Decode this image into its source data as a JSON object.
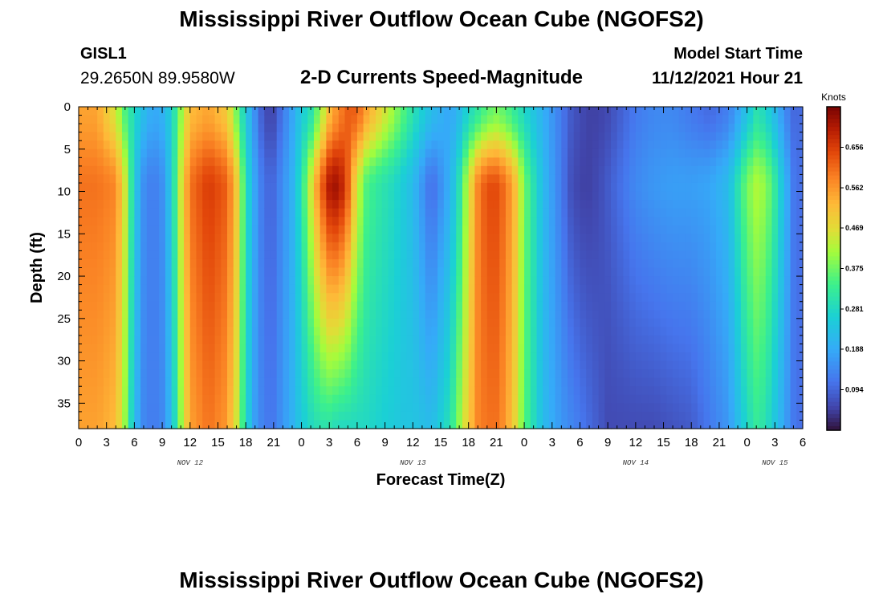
{
  "header": {
    "title": "Mississippi River Outflow Ocean Cube (NGOFS2)",
    "station_id": "GISL1",
    "station_coords": "29.2650N  89.9580W",
    "subtitle": "2-D Currents Speed-Magnitude",
    "model_start_label": "Model Start Time",
    "model_start_value": "11/12/2021 Hour 21"
  },
  "footer": {
    "title": "Mississippi River Outflow Ocean Cube (NGOFS2)"
  },
  "chart_data": {
    "type": "heatmap",
    "xlabel": "Forecast Time(Z)",
    "ylabel": "Depth (ft)",
    "x_range_hours": [
      0,
      78
    ],
    "y_range_ft": [
      0,
      38
    ],
    "x_tick_labels": [
      "0",
      "3",
      "6",
      "9",
      "12",
      "15",
      "18",
      "21",
      "0",
      "3",
      "6",
      "9",
      "12",
      "15",
      "18",
      "21",
      "0",
      "3",
      "6",
      "9",
      "12",
      "15",
      "18",
      "21",
      "0",
      "3",
      "6"
    ],
    "y_tick_labels": [
      "0",
      "5",
      "10",
      "15",
      "20",
      "25",
      "30",
      "35"
    ],
    "y_tick_values": [
      0,
      5,
      10,
      15,
      20,
      25,
      30,
      35
    ],
    "date_labels": [
      {
        "text": "NOV 12",
        "hour": 12
      },
      {
        "text": "NOV 13",
        "hour": 36
      },
      {
        "text": "NOV 14",
        "hour": 60
      },
      {
        "text": "NOV 15",
        "hour": 75
      }
    ],
    "colorbar": {
      "unit": "Knots",
      "range": [
        0.0,
        0.75
      ],
      "tick_labels": [
        "0.656",
        "0.562",
        "0.469",
        "0.375",
        "0.281",
        "0.188",
        "0.094"
      ],
      "tick_values": [
        0.656,
        0.562,
        0.469,
        0.375,
        0.281,
        0.188,
        0.094
      ],
      "colormap": "turbo"
    },
    "speed_profile_by_hour": {
      "hours": [
        0,
        2,
        4,
        5,
        6,
        7,
        8,
        9,
        10,
        11,
        12,
        14,
        16,
        17,
        18,
        19,
        20,
        21,
        22,
        23,
        24,
        25,
        26,
        27,
        28,
        29,
        30,
        31,
        32,
        33,
        34,
        35,
        36,
        38,
        40,
        41,
        42,
        43,
        44,
        45,
        46,
        47,
        48,
        50,
        52,
        53,
        54,
        55,
        56,
        57,
        58,
        59,
        60,
        62,
        64,
        66,
        68,
        70,
        71,
        72,
        73,
        74,
        75,
        76,
        77,
        78
      ],
      "surface_knots": [
        0.55,
        0.55,
        0.45,
        0.35,
        0.28,
        0.22,
        0.18,
        0.2,
        0.26,
        0.4,
        0.52,
        0.55,
        0.5,
        0.38,
        0.25,
        0.15,
        0.06,
        0.06,
        0.12,
        0.18,
        0.25,
        0.3,
        0.4,
        0.52,
        0.58,
        0.62,
        0.62,
        0.55,
        0.5,
        0.45,
        0.4,
        0.35,
        0.3,
        0.22,
        0.18,
        0.22,
        0.28,
        0.32,
        0.36,
        0.38,
        0.36,
        0.32,
        0.28,
        0.2,
        0.12,
        0.08,
        0.06,
        0.05,
        0.05,
        0.06,
        0.08,
        0.1,
        0.12,
        0.14,
        0.14,
        0.12,
        0.1,
        0.13,
        0.18,
        0.24,
        0.3,
        0.28,
        0.22,
        0.15,
        0.1,
        0.1
      ],
      "mid_knots": [
        0.6,
        0.6,
        0.58,
        0.45,
        0.25,
        0.15,
        0.12,
        0.15,
        0.25,
        0.45,
        0.6,
        0.66,
        0.62,
        0.5,
        0.3,
        0.18,
        0.1,
        0.1,
        0.15,
        0.2,
        0.3,
        0.45,
        0.6,
        0.7,
        0.72,
        0.62,
        0.45,
        0.35,
        0.32,
        0.3,
        0.28,
        0.25,
        0.22,
        0.1,
        0.2,
        0.3,
        0.45,
        0.58,
        0.64,
        0.64,
        0.6,
        0.52,
        0.38,
        0.22,
        0.12,
        0.07,
        0.05,
        0.05,
        0.06,
        0.08,
        0.1,
        0.12,
        0.14,
        0.16,
        0.17,
        0.17,
        0.18,
        0.22,
        0.3,
        0.38,
        0.42,
        0.4,
        0.32,
        0.22,
        0.12,
        0.1
      ],
      "bottom_knots": [
        0.55,
        0.55,
        0.52,
        0.4,
        0.22,
        0.14,
        0.12,
        0.14,
        0.22,
        0.4,
        0.55,
        0.6,
        0.56,
        0.45,
        0.28,
        0.17,
        0.12,
        0.12,
        0.16,
        0.2,
        0.25,
        0.28,
        0.3,
        0.3,
        0.28,
        0.28,
        0.28,
        0.28,
        0.27,
        0.26,
        0.25,
        0.24,
        0.24,
        0.22,
        0.3,
        0.4,
        0.5,
        0.58,
        0.6,
        0.6,
        0.56,
        0.48,
        0.36,
        0.22,
        0.16,
        0.14,
        0.12,
        0.1,
        0.08,
        0.06,
        0.06,
        0.06,
        0.06,
        0.06,
        0.07,
        0.08,
        0.12,
        0.16,
        0.22,
        0.28,
        0.32,
        0.3,
        0.24,
        0.18,
        0.12,
        0.1
      ]
    }
  }
}
